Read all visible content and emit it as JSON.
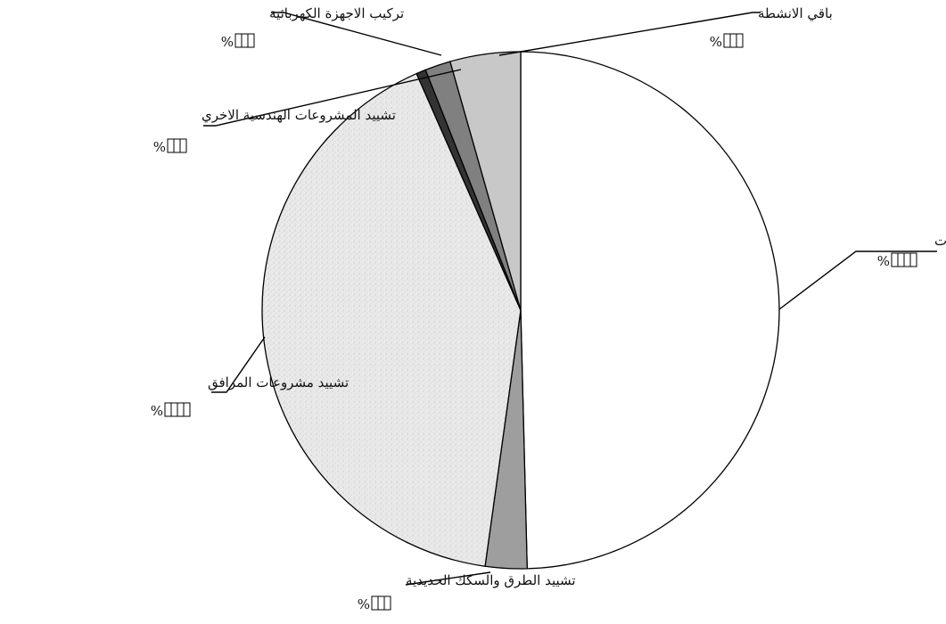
{
  "chart_data": {
    "type": "pie",
    "start_angle_deg": 0,
    "direction": "clockwise",
    "title": "",
    "slices": [
      {
        "label": "تشييد البنايات",
        "value": 49.6,
        "value_text": "%",
        "color": "#ffffff"
      },
      {
        "label": "تشييد الطرق والسكك الحديدية",
        "value": 2.6,
        "value_text": "%",
        "color": "#9e9e9e"
      },
      {
        "label": "تشييد مشروعات المرافق",
        "value": 41.2,
        "value_text": "%",
        "color": "#e6e6e6"
      },
      {
        "label": "تشييد المشروعات الهندسية الاخري",
        "value": 0.6,
        "value_text": "%",
        "color": "#333333"
      },
      {
        "label": "تركيب الاجهزة الكهربائية",
        "value": 1.6,
        "value_text": "%",
        "color": "#808080"
      },
      {
        "label": "باقي الانشطة",
        "value": 4.4,
        "value_text": "%",
        "color": "#c8c8c8"
      }
    ]
  }
}
